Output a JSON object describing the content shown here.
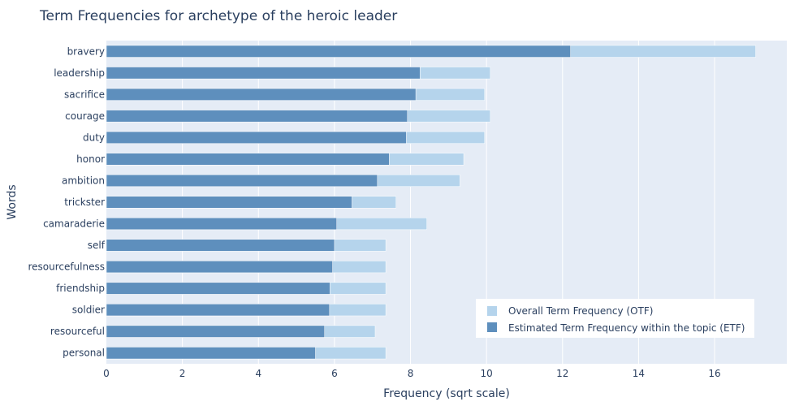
{
  "chart_data": {
    "type": "bar",
    "orientation": "horizontal",
    "barmode": "overlay",
    "title": "Term Frequencies for archetype of the heroic leader",
    "xlabel": "Frequency (sqrt scale)",
    "ylabel": "Words",
    "xlim": [
      0,
      17.9
    ],
    "xticks": [
      0,
      2,
      4,
      6,
      8,
      10,
      12,
      14,
      16
    ],
    "grid": true,
    "legend_position": "bottom-right",
    "categories": [
      "bravery",
      "leadership",
      "sacrifice",
      "courage",
      "duty",
      "honor",
      "ambition",
      "trickster",
      "camaraderie",
      "self",
      "resourcefulness",
      "friendship",
      "soldier",
      "resourceful",
      "personal"
    ],
    "series": [
      {
        "name": "Overall Term Frequency (OTF)",
        "color": "#b5d4ec",
        "values": [
          17.08,
          10.1,
          9.95,
          10.1,
          9.95,
          9.4,
          9.3,
          7.62,
          8.43,
          7.35,
          7.35,
          7.35,
          7.35,
          7.07,
          7.35
        ]
      },
      {
        "name": "Estimated Term Frequency within the topic (ETF)",
        "color": "#5e8fbd",
        "values": [
          12.21,
          8.25,
          8.14,
          7.92,
          7.89,
          7.44,
          7.13,
          6.46,
          6.06,
          6.0,
          5.95,
          5.88,
          5.87,
          5.74,
          5.5
        ]
      }
    ]
  }
}
